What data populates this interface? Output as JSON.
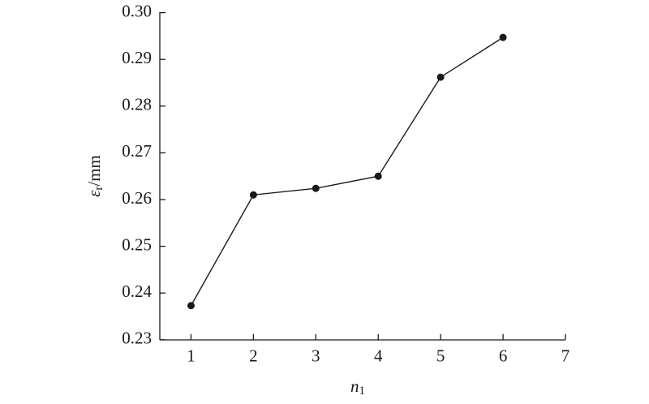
{
  "chart_data": {
    "type": "line",
    "xlabel": {
      "symbol": "n",
      "subscript": "1"
    },
    "ylabel": {
      "symbol": "ε",
      "subscript": "r",
      "unit": "/mm"
    },
    "x": [
      1,
      2,
      3,
      4,
      5,
      6
    ],
    "series": [
      {
        "color": "#1a1a1a",
        "values": [
          0.2373,
          0.261,
          0.2624,
          0.265,
          0.2862,
          0.2947
        ]
      }
    ],
    "xlim": [
      0.5,
      7
    ],
    "xticks": [
      1,
      2,
      3,
      4,
      5,
      6,
      7
    ],
    "ylim": [
      0.23,
      0.3
    ],
    "yticks": [
      0.23,
      0.24,
      0.25,
      0.26,
      0.27,
      0.28,
      0.29,
      {
        "value": 0.3,
        "label": "0.30"
      }
    ],
    "grid": false
  }
}
